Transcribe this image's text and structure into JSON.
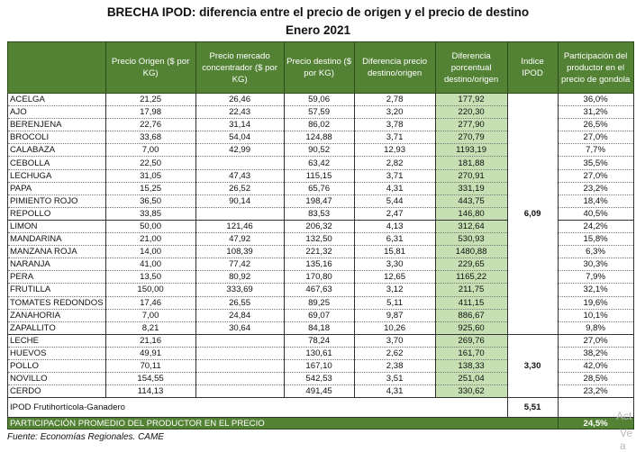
{
  "title": "BRECHA IPOD: diferencia entre el precio de origen y el precio de destino",
  "subtitle": "Enero 2021",
  "headers": [
    "",
    "Precio Origen ($ por KG)",
    "Precio mercado concentrador ($ por KG)",
    "Precio destino ($ por KG)",
    "Diferencia precio destino/origen",
    "Diferencia porcentual destino/origen",
    "Indice IPOD",
    "Participación del productor en el precio de gondola"
  ],
  "rows": [
    [
      "ACELGA",
      "21,25",
      "26,46",
      "59,06",
      "2,78",
      "177,92",
      "36,0%"
    ],
    [
      "AJO",
      "17,98",
      "22,43",
      "57,59",
      "3,20",
      "220,30",
      "31,2%"
    ],
    [
      "BERENJENA",
      "22,76",
      "31,14",
      "86,02",
      "3,78",
      "277,90",
      "26,5%"
    ],
    [
      "BROCOLI",
      "33,68",
      "54,04",
      "124,88",
      "3,71",
      "270,79",
      "27,0%"
    ],
    [
      "CALABAZA",
      "7,00",
      "42,99",
      "90,52",
      "12,93",
      "1193,19",
      "7,7%"
    ],
    [
      "CEBOLLA",
      "22,50",
      "",
      "63,42",
      "2,82",
      "181,88",
      "35,5%"
    ],
    [
      "LECHUGA",
      "31,05",
      "47,43",
      "115,15",
      "3,71",
      "270,91",
      "27,0%"
    ],
    [
      "PAPA",
      "15,25",
      "26,52",
      "65,76",
      "4,31",
      "331,19",
      "23,2%"
    ],
    [
      "PIMIENTO ROJO",
      "36,50",
      "90,14",
      "198,47",
      "5,44",
      "443,75",
      "18,4%"
    ],
    [
      "REPOLLO",
      "33,85",
      "",
      "83,53",
      "2,47",
      "146,80",
      "40,5%"
    ],
    [
      "LIMON",
      "50,00",
      "121,46",
      "206,32",
      "4,13",
      "312,64",
      "24,2%"
    ],
    [
      "MANDARINA",
      "21,00",
      "47,92",
      "132,50",
      "6,31",
      "530,93",
      "15,8%"
    ],
    [
      "MANZANA ROJA",
      "14,00",
      "108,39",
      "221,32",
      "15,81",
      "1480,88",
      "6,3%"
    ],
    [
      "NARANJA",
      "41,00",
      "77,42",
      "135,16",
      "3,30",
      "229,65",
      "30,3%"
    ],
    [
      "PERA",
      "13,50",
      "80,92",
      "170,80",
      "12,65",
      "1165,22",
      "7,9%"
    ],
    [
      "FRUTILLA",
      "150,00",
      "333,69",
      "467,63",
      "3,12",
      "211,75",
      "32,1%"
    ],
    [
      "TOMATES REDONDOS",
      "17,46",
      "26,55",
      "89,25",
      "5,11",
      "411,15",
      "19,6%"
    ],
    [
      "ZANAHORIA",
      "7,00",
      "24,84",
      "69,07",
      "9,87",
      "886,67",
      "10,1%"
    ],
    [
      "ZAPALLITO",
      "8,21",
      "30,64",
      "84,18",
      "10,26",
      "925,60",
      "9,8%"
    ],
    [
      "LECHE",
      "21,16",
      "",
      "78,24",
      "3,70",
      "269,76",
      "27,0%"
    ],
    [
      "HUEVOS",
      "49,91",
      "",
      "130,61",
      "2,62",
      "161,70",
      "38,2%"
    ],
    [
      "POLLO",
      "70,11",
      "",
      "167,10",
      "2,38",
      "138,33",
      "42,0%"
    ],
    [
      "NOVILLO",
      "154,55",
      "",
      "542,53",
      "3,51",
      "251,04",
      "28,5%"
    ],
    [
      "CERDO",
      "114,13",
      "",
      "491,45",
      "4,31",
      "330,62",
      "23,2%"
    ]
  ],
  "ipod_groups": [
    {
      "value": "6,09",
      "span": 19
    },
    {
      "value": "3,30",
      "span": 5
    }
  ],
  "ipod_total": {
    "label": "IPOD Frutihortícola-Ganadero",
    "value": "5,51"
  },
  "participation": {
    "label": "PARTICIPACIÓN PROMEDIO DEL PRODUCTOR EN EL PRECIO",
    "value": "24,5%"
  },
  "source": "Fuente: Economías Regionales. CAME",
  "watermark": [
    "Act",
    "Ve a"
  ]
}
